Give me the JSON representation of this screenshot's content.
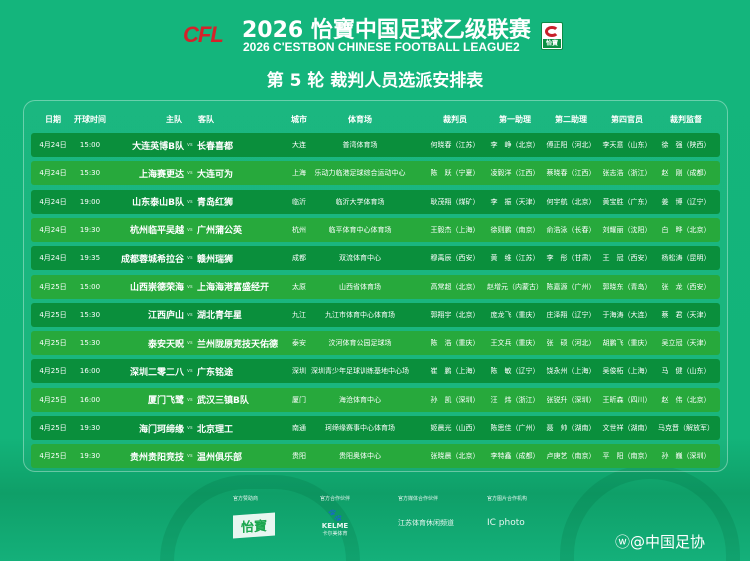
{
  "header": {
    "logo_left": "CFL",
    "title": "2026 怡寶中国足球乙级联赛",
    "subtitle": "2026 C'ESTBON CHINESE FOOTBALL LEAGUE2",
    "badge": "怡寶",
    "round_title": "第 5 轮 裁判人员选派安排表"
  },
  "columns": {
    "date": "日期",
    "time": "开球时间",
    "home": "主队",
    "away": "客队",
    "city": "城市",
    "stadium": "体育场",
    "referee": "裁判员",
    "assistant1": "第一助理",
    "assistant2": "第二助理",
    "fourth": "第四官员",
    "supervisor": "裁判监督"
  },
  "vs": "vs",
  "rows": [
    [
      "4月24日",
      "15:00",
      "大连英博B队",
      "长春喜都",
      "大连",
      "普湾体育场",
      "何晓春（江苏）",
      "李　峥（北京）",
      "傅正阳（河北）",
      "李天意（山东）",
      "徐　强（陕西）"
    ],
    [
      "4月24日",
      "15:30",
      "上海赛更达",
      "大连可为",
      "上海",
      "乐动力临港足球综合运动中心",
      "陈　跃（宁夏）",
      "凌毅洋（江西）",
      "蔡晓春（江西）",
      "张志浩（浙江）",
      "赵　刚（成都）"
    ],
    [
      "4月24日",
      "19:00",
      "山东泰山B队",
      "青岛红狮",
      "临沂",
      "临沂大学体育场",
      "耿茂翔（煤矿）",
      "李　振（天津）",
      "何宇航（北京）",
      "黄宝胜（广东）",
      "姜　博（辽宁）"
    ],
    [
      "4月24日",
      "19:30",
      "杭州临平吴越",
      "广州蒲公英",
      "杭州",
      "临平体育中心体育场",
      "王毅杰（上海）",
      "徐则鹏（南京）",
      "俞浩泳（长春）",
      "刘耀丽（沈阳）",
      "白　晔（北京）"
    ],
    [
      "4月24日",
      "19:35",
      "成都蓉城希拉谷",
      "赣州瑞狮",
      "成都",
      "双流体育中心",
      "穆禹辰（西安）",
      "黄　维（江苏）",
      "李　彤（甘肃）",
      "王　冠（西安）",
      "杨松涛（昆明）"
    ],
    [
      "4月25日",
      "15:00",
      "山西崇德荣海",
      "上海海港富盛经开",
      "太原",
      "山西省体育场",
      "高常超（北京）",
      "赵增元（内蒙古）",
      "陈嘉源（广州）",
      "郭晓东（青岛）",
      "张　龙（西安）"
    ],
    [
      "4月25日",
      "15:30",
      "江西庐山",
      "湖北青年星",
      "九江",
      "九江市体育中心体育场",
      "郭翔宇（北京）",
      "庞龙飞（重庆）",
      "庄泽翔（辽宁）",
      "于海涛（大连）",
      "蔡　君（天津）"
    ],
    [
      "4月25日",
      "15:30",
      "泰安天贶",
      "兰州陇原竞技天佑德",
      "泰安",
      "汶河体育公园足球场",
      "陈　浩（重庆）",
      "王文兵（重庆）",
      "张　硕（河北）",
      "胡鹏飞（重庆）",
      "吴立冠（天津）"
    ],
    [
      "4月25日",
      "16:00",
      "深圳二零二八",
      "广东铭途",
      "深圳",
      "深圳青少年足球训练基地中心场",
      "崔　鹏（上海）",
      "陈　敏（辽宁）",
      "饶永州（上海）",
      "吴俊柘（上海）",
      "马　健（山东）"
    ],
    [
      "4月25日",
      "16:00",
      "厦门飞鹭",
      "武汉三镇B队",
      "厦门",
      "海沧体育中心",
      "孙　凯（深圳）",
      "汪　炜（浙江）",
      "张锐升（深圳）",
      "王昕森（四川）",
      "赵　伟（北京）"
    ],
    [
      "4月25日",
      "19:30",
      "海门珂缔缘",
      "北京理工",
      "南通",
      "珂缔缘赛事中心体育场",
      "姬晨光（山西）",
      "陈思佳（广州）",
      "聂　帅（湖南）",
      "文世祥（湖南）",
      "马克晋（解放军）"
    ],
    [
      "4月25日",
      "19:30",
      "贵州贵阳竞技",
      "温州俱乐部",
      "贵阳",
      "贵阳奥体中心",
      "张晓晨（北京）",
      "李特鑫（成都）",
      "卢庚艺（南京）",
      "平　阳（南京）",
      "孙　巍（深圳）"
    ]
  ],
  "sponsors": [
    {
      "caption": "官方赞助商",
      "name": "怡寶"
    },
    {
      "caption": "官方合作伙伴",
      "name": "KELME",
      "sub": "卡尔美体育"
    },
    {
      "caption": "官方媒体合作伙伴",
      "name": "江苏体育休闲频道"
    },
    {
      "caption": "官方图片合作机构",
      "name": "IC photo"
    }
  ],
  "watermark": "@中国足协",
  "colors": {
    "background": "#14b57c",
    "row_dark": "#0a8f3c",
    "row_light": "#27a93c",
    "cfl_red": "#d4222a"
  }
}
